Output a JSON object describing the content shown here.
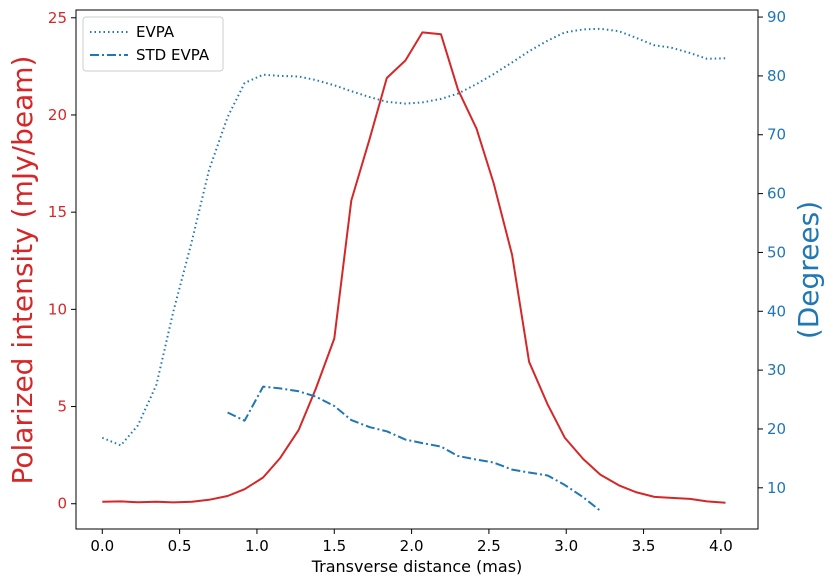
{
  "chart_data": {
    "type": "line",
    "xlabel": "Transverse distance (mas)",
    "ylabel_left": "Polarized intensity (mJy/beam)",
    "ylabel_right": "(Degrees)",
    "xlim": [
      -0.17,
      4.24
    ],
    "ylim_left": [
      -1.3,
      25.4
    ],
    "ylim_right": [
      3.0,
      91.2
    ],
    "xticks": [
      "0.0",
      "0.5",
      "1.0",
      "1.5",
      "2.0",
      "2.5",
      "3.0",
      "3.5",
      "4.0"
    ],
    "yticks_left": [
      "0",
      "5",
      "10",
      "15",
      "20",
      "25"
    ],
    "yticks_right": [
      "10",
      "20",
      "30",
      "40",
      "50",
      "60",
      "70",
      "80",
      "90"
    ],
    "colors": {
      "left_axis": "#d62728",
      "right_axis": "#1f77b4",
      "intensity": "#d62728",
      "evpa": "#1f77b4",
      "std_evpa": "#1f77b4"
    },
    "legend": {
      "placement": "upper left",
      "entries": [
        "EVPA",
        "STD EVPA"
      ]
    },
    "series": [
      {
        "axis": "left",
        "style": "solid",
        "x": [
          0.0,
          0.12,
          0.23,
          0.35,
          0.46,
          0.58,
          0.69,
          0.81,
          0.92,
          1.04,
          1.15,
          1.27,
          1.38,
          1.5,
          1.61,
          1.73,
          1.84,
          1.96,
          2.07,
          2.19,
          2.3,
          2.42,
          2.53,
          2.65,
          2.76,
          2.88,
          2.99,
          3.11,
          3.22,
          3.34,
          3.45,
          3.57,
          3.68,
          3.8,
          3.91,
          4.03
        ],
        "values": [
          0.1,
          0.12,
          0.08,
          0.1,
          0.07,
          0.1,
          0.2,
          0.4,
          0.75,
          1.35,
          2.35,
          3.8,
          5.9,
          8.5,
          15.6,
          18.8,
          21.9,
          22.8,
          24.25,
          24.15,
          21.3,
          19.3,
          16.5,
          12.8,
          7.3,
          5.1,
          3.4,
          2.3,
          1.5,
          0.95,
          0.6,
          0.35,
          0.3,
          0.25,
          0.12,
          0.05
        ]
      },
      {
        "name": "EVPA",
        "axis": "right",
        "style": "dotted",
        "x": [
          0.0,
          0.12,
          0.23,
          0.35,
          0.46,
          0.58,
          0.69,
          0.81,
          0.92,
          1.04,
          1.15,
          1.27,
          1.38,
          1.5,
          1.61,
          1.73,
          1.84,
          1.96,
          2.07,
          2.19,
          2.3,
          2.42,
          2.53,
          2.65,
          2.76,
          2.88,
          2.99,
          3.11,
          3.22,
          3.34,
          3.45,
          3.57,
          3.68,
          3.8,
          3.91,
          4.03
        ],
        "values": [
          18.5,
          17.2,
          20.6,
          27.5,
          40.0,
          52.0,
          64.0,
          73.0,
          78.8,
          80.2,
          80.0,
          79.9,
          79.3,
          78.4,
          77.4,
          76.4,
          75.6,
          75.3,
          75.5,
          76.1,
          77.0,
          78.6,
          80.3,
          82.3,
          84.2,
          86.0,
          87.4,
          87.9,
          88.0,
          87.6,
          86.5,
          85.2,
          84.8,
          83.9,
          82.9,
          83.0
        ]
      },
      {
        "name": "STD EVPA",
        "axis": "right",
        "style": "dashdot",
        "x": [
          0.81,
          0.92,
          1.04,
          1.15,
          1.27,
          1.38,
          1.5,
          1.61,
          1.73,
          1.84,
          1.96,
          2.07,
          2.19,
          2.3,
          2.42,
          2.53,
          2.65,
          2.76,
          2.88,
          2.99,
          3.11,
          3.22
        ],
        "values": [
          22.8,
          21.4,
          27.2,
          26.9,
          26.4,
          25.5,
          23.9,
          21.5,
          20.3,
          19.6,
          18.2,
          17.6,
          17.0,
          15.4,
          14.8,
          14.3,
          13.1,
          12.6,
          12.1,
          10.5,
          8.4,
          6.1
        ]
      }
    ]
  }
}
